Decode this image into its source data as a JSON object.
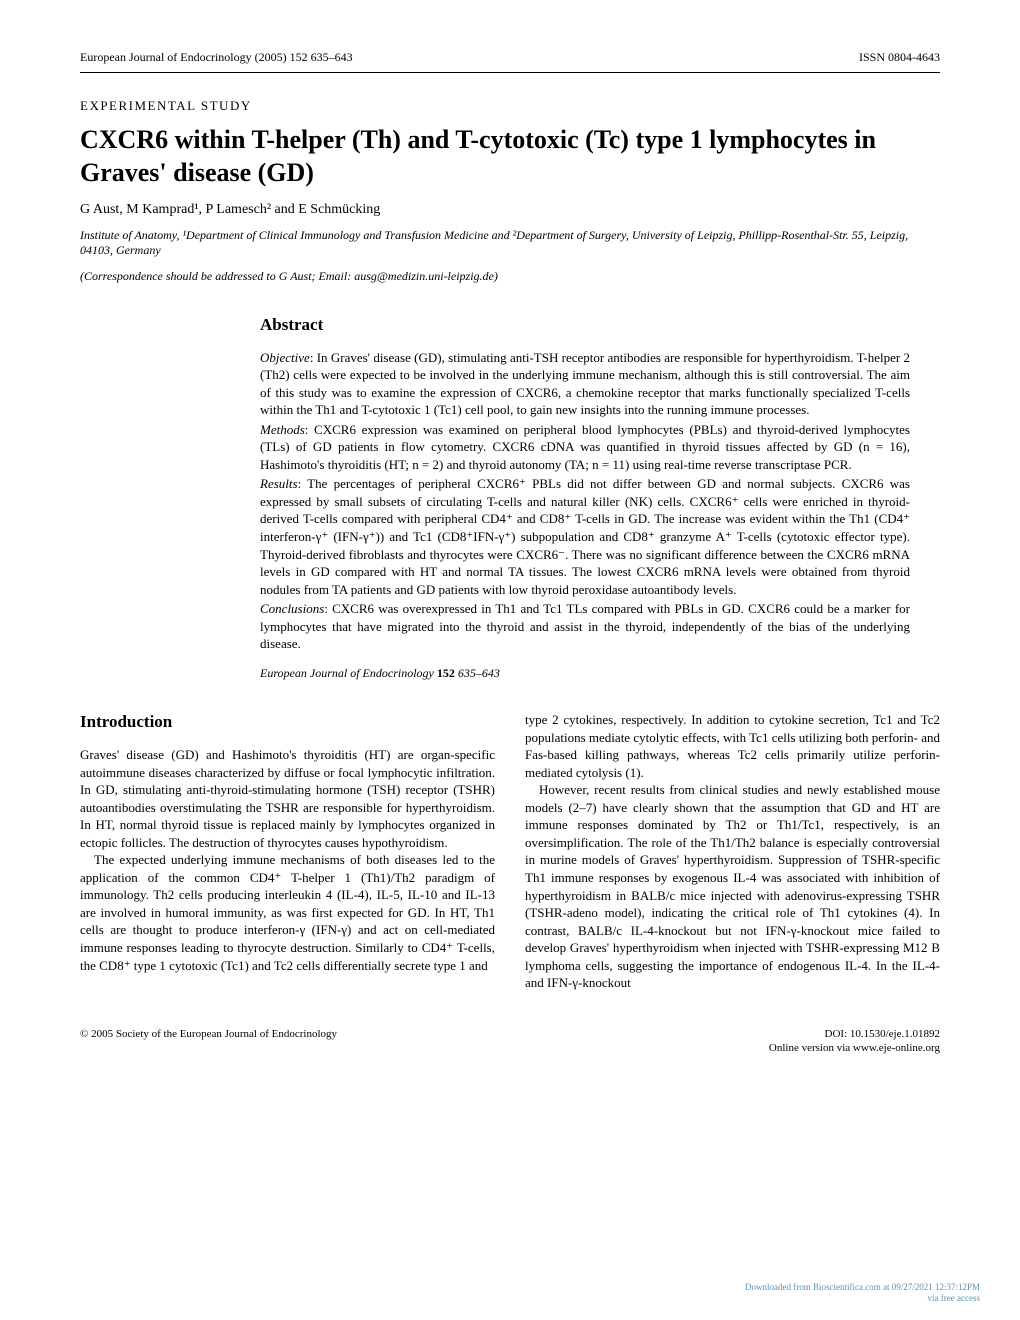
{
  "header": {
    "journal_info": "European Journal of Endocrinology (2005) 152 635–643",
    "issn": "ISSN 0804-4643"
  },
  "article": {
    "study_type": "EXPERIMENTAL STUDY",
    "title": "CXCR6 within T-helper (Th) and T-cytotoxic (Tc) type 1 lymphocytes in Graves' disease (GD)",
    "authors": "G Aust, M Kamprad¹, P Lamesch² and E Schmücking",
    "affiliation": "Institute of Anatomy, ¹Department of Clinical Immunology and Transfusion Medicine and ²Department of Surgery, University of Leipzig, Phillipp-Rosenthal-Str. 55, Leipzig, 04103, Germany",
    "correspondence": "(Correspondence should be addressed to G Aust; Email: ausg@medizin.uni-leipzig.de)"
  },
  "abstract": {
    "heading": "Abstract",
    "objective_label": "Objective",
    "objective": ": In Graves' disease (GD), stimulating anti-TSH receptor antibodies are responsible for hyperthyroidism. T-helper 2 (Th2) cells were expected to be involved in the underlying immune mechanism, although this is still controversial. The aim of this study was to examine the expression of CXCR6, a chemokine receptor that marks functionally specialized T-cells within the Th1 and T-cytotoxic 1 (Tc1) cell pool, to gain new insights into the running immune processes.",
    "methods_label": "Methods",
    "methods": ": CXCR6 expression was examined on peripheral blood lymphocytes (PBLs) and thyroid-derived lymphocytes (TLs) of GD patients in flow cytometry. CXCR6 cDNA was quantified in thyroid tissues affected by GD (n = 16), Hashimoto's thyroiditis (HT; n = 2) and thyroid autonomy (TA; n = 11) using real-time reverse transcriptase PCR.",
    "results_label": "Results",
    "results": ": The percentages of peripheral CXCR6⁺ PBLs did not differ between GD and normal subjects. CXCR6 was expressed by small subsets of circulating T-cells and natural killer (NK) cells. CXCR6⁺ cells were enriched in thyroid-derived T-cells compared with peripheral CD4⁺ and CD8⁺ T-cells in GD. The increase was evident within the Th1 (CD4⁺ interferon-γ⁺ (IFN-γ⁺)) and Tc1 (CD8⁺IFN-γ⁺) subpopulation and CD8⁺ granzyme A⁺ T-cells (cytotoxic effector type). Thyroid-derived fibroblasts and thyrocytes were CXCR6⁻. There was no significant difference between the CXCR6 mRNA levels in GD compared with HT and normal TA tissues. The lowest CXCR6 mRNA levels were obtained from thyroid nodules from TA patients and GD patients with low thyroid peroxidase autoantibody levels.",
    "conclusions_label": "Conclusions",
    "conclusions": ": CXCR6 was overexpressed in Th1 and Tc1 TLs compared with PBLs in GD. CXCR6 could be a marker for lymphocytes that have migrated into the thyroid and assist in the thyroid, independently of the bias of the underlying disease.",
    "journal_ref_prefix": "European Journal of Endocrinology ",
    "journal_ref_vol": "152",
    "journal_ref_pages": " 635–643"
  },
  "intro": {
    "heading": "Introduction",
    "para1": "Graves' disease (GD) and Hashimoto's thyroiditis (HT) are organ-specific autoimmune diseases characterized by diffuse or focal lymphocytic infiltration. In GD, stimulating anti-thyroid-stimulating hormone (TSH) receptor (TSHR) autoantibodies overstimulating the TSHR are responsible for hyperthyroidism. In HT, normal thyroid tissue is replaced mainly by lymphocytes organized in ectopic follicles. The destruction of thyrocytes causes hypothyroidism.",
    "para2": "The expected underlying immune mechanisms of both diseases led to the application of the common CD4⁺ T-helper 1 (Th1)/Th2 paradigm of immunology. Th2 cells producing interleukin 4 (IL-4), IL-5, IL-10 and IL-13 are involved in humoral immunity, as was first expected for GD. In HT, Th1 cells are thought to produce interferon-γ (IFN-γ) and act on cell-mediated immune responses leading to thyrocyte destruction. Similarly to CD4⁺ T-cells, the CD8⁺ type 1 cytotoxic (Tc1) and Tc2 cells differentially secrete type 1 and",
    "para3": "type 2 cytokines, respectively. In addition to cytokine secretion, Tc1 and Tc2 populations mediate cytolytic effects, with Tc1 cells utilizing both perforin- and Fas-based killing pathways, whereas Tc2 cells primarily utilize perforin-mediated cytolysis (1).",
    "para4": "However, recent results from clinical studies and newly established mouse models (2–7) have clearly shown that the assumption that GD and HT are immune responses dominated by Th2 or Th1/Tc1, respectively, is an oversimplification. The role of the Th1/Th2 balance is especially controversial in murine models of Graves' hyperthyroidism. Suppression of TSHR-specific Th1 immune responses by exogenous IL-4 was associated with inhibition of hyperthyroidism in BALB/c mice injected with adenovirus-expressing TSHR (TSHR-adeno model), indicating the critical role of Th1 cytokines (4). In contrast, BALB/c IL-4-knockout but not IFN-γ-knockout mice failed to develop Graves' hyperthyroidism when injected with TSHR-expressing M12 B lymphoma cells, suggesting the importance of endogenous IL-4. In the IL-4- and IFN-γ-knockout"
  },
  "footer": {
    "copyright": "© 2005 Society of the European Journal of Endocrinology",
    "doi": "DOI: 10.1530/eje.1.01892",
    "online": "Online version via www.eje-online.org",
    "download_line1": "Downloaded from Bioscientifica.com at 09/27/2021 12:37:12PM",
    "download_line2": "via free access"
  }
}
